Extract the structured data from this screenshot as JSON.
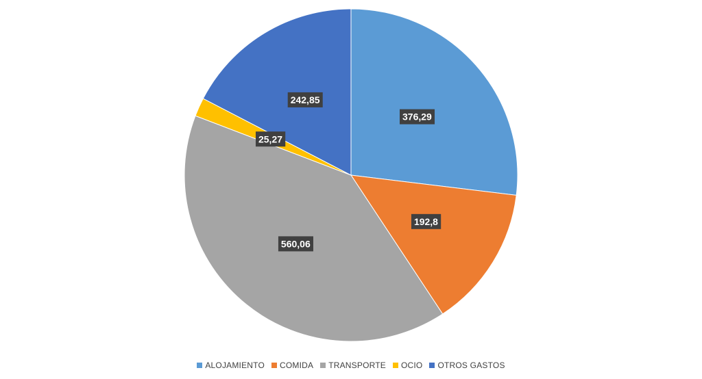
{
  "chart_data": {
    "type": "pie",
    "title": "",
    "slices": [
      {
        "label": "ALOJAMIENTO",
        "value": 376.29,
        "display": "376,29",
        "color": "#5B9BD5"
      },
      {
        "label": "COMIDA",
        "value": 192.8,
        "display": "192,8",
        "color": "#ED7D31"
      },
      {
        "label": "TRANSPORTE",
        "value": 560.06,
        "display": "560,06",
        "color": "#A5A5A5"
      },
      {
        "label": "OCIO",
        "value": 25.27,
        "display": "25,27",
        "color": "#FFC000"
      },
      {
        "label": "OTROS GASTOS",
        "value": 242.85,
        "display": "242,85",
        "color": "#4472C4"
      }
    ],
    "legend_position": "bottom",
    "start_angle": "12 o'clock",
    "direction": "clockwise"
  }
}
